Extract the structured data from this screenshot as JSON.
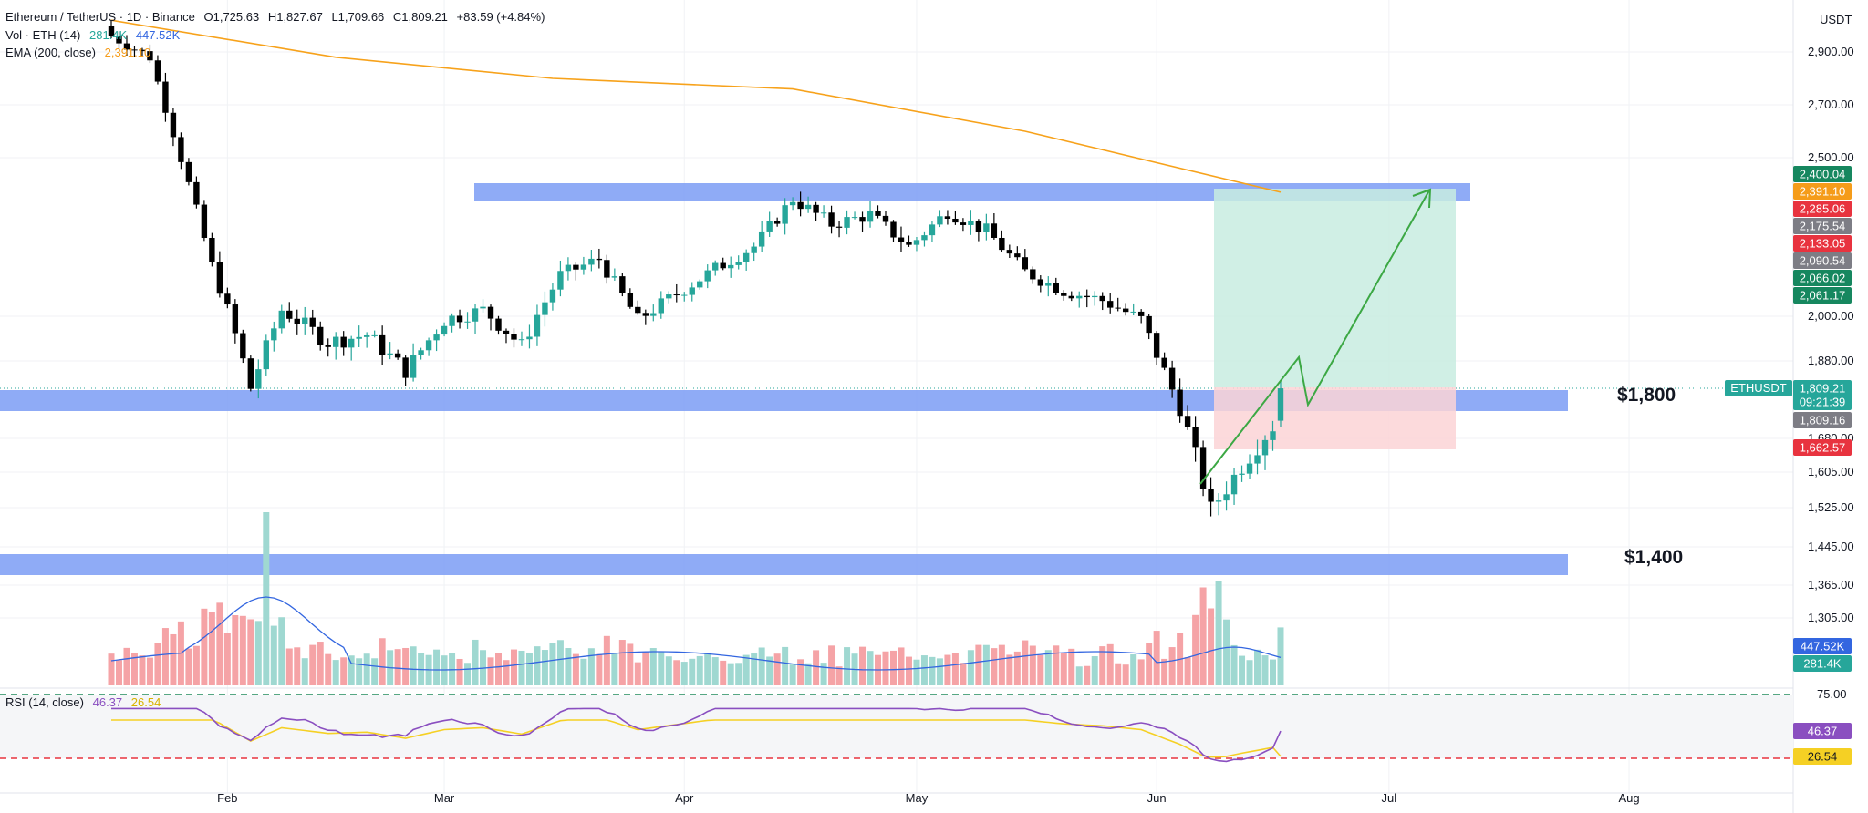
{
  "header": {
    "symbol": "Ethereum / TetherUS · 1D · Binance",
    "open": "O1,725.63",
    "high": "H1,827.67",
    "low": "L1,709.66",
    "close": "C1,809.21",
    "change": "+83.59 (+4.84%)"
  },
  "indicators": {
    "vol_label": "Vol · ETH (14)",
    "vol_value": "281.4K",
    "vol_ma_value": "447.52K",
    "ema_label": "EMA (200, close)",
    "ema_value": "2,391.10",
    "rsi_label": "RSI (14, close)",
    "rsi_value": "46.37",
    "rsi_ma_value": "26.54"
  },
  "colors": {
    "up": "#26a69a",
    "down": "#000000",
    "ema": "#f7a21b",
    "zone": "#7b9cf5",
    "profit": "#c8ece1",
    "loss": "#fbd3d6",
    "arrow": "#3ca844",
    "rsi": "#8a4fc0",
    "rsi_ma": "#f5d024",
    "vol_ma": "#3366e0"
  },
  "price_axis": {
    "unit": "USDT",
    "ticks": [
      "2,900.00",
      "2,700.00",
      "2,500.00",
      "2,000.00",
      "1,880.00",
      "1,680.00",
      "1,605.00",
      "1,525.00",
      "1,445.00",
      "1,365.00",
      "1,305.00"
    ],
    "tick_values": [
      2900,
      2700,
      2500,
      2000,
      1880,
      1680,
      1605,
      1525,
      1445,
      1365,
      1305
    ]
  },
  "rsi_axis": {
    "ticks": [
      "75.00"
    ]
  },
  "time_axis": {
    "labels": [
      "Feb",
      "Mar",
      "Apr",
      "May",
      "Jun",
      "Jul",
      "Aug"
    ]
  },
  "badges": [
    {
      "text": "2,400.04",
      "color": "#16875f"
    },
    {
      "text": "2,391.10",
      "color": "#f59c1a"
    },
    {
      "text": "2,285.06",
      "color": "#e8333f"
    },
    {
      "text": "2,175.54",
      "color": "#7d7d85"
    },
    {
      "text": "2,133.05",
      "color": "#e8333f"
    },
    {
      "text": "2,090.54",
      "color": "#7d7d85"
    },
    {
      "text": "2,066.02",
      "color": "#16875f"
    },
    {
      "text": "2,061.17",
      "color": "#16875f"
    },
    {
      "text": "1,809.21",
      "color": "#26a69a"
    },
    {
      "text": "09:21:39",
      "color": "#26a69a"
    },
    {
      "text": "1,809.16",
      "color": "#7d7d85"
    },
    {
      "text": "1,662.57",
      "color": "#e8333f"
    },
    {
      "text": "447.52K",
      "color": "#3366e0"
    },
    {
      "text": "281.4K",
      "color": "#26a69a"
    },
    {
      "text": "46.37",
      "color": "#8a4fc0"
    },
    {
      "text": "26.54",
      "color": "#f5d024"
    }
  ],
  "symbol_tag": "ETHUSDT",
  "levels": {
    "upper": "$1,800",
    "lower": "$1,400"
  },
  "chart_data": {
    "type": "candlestick",
    "title": "Ethereum / TetherUS · 1D · Binance",
    "x_range": [
      "2023-01-17",
      "2023-07-31"
    ],
    "ohlc_anchor_closes": [
      [
        "2023-01-17",
        2960
      ],
      [
        "2023-01-22",
        2880
      ],
      [
        "2023-01-26",
        2500
      ],
      [
        "2023-01-30",
        2160
      ],
      [
        "2023-02-04",
        1810
      ],
      [
        "2023-02-08",
        2020
      ],
      [
        "2023-02-14",
        1930
      ],
      [
        "2023-02-19",
        1950
      ],
      [
        "2023-02-24",
        1855
      ],
      [
        "2023-03-01",
        1990
      ],
      [
        "2023-03-06",
        2020
      ],
      [
        "2023-03-11",
        1920
      ],
      [
        "2023-03-16",
        2130
      ],
      [
        "2023-03-21",
        2180
      ],
      [
        "2023-03-26",
        1990
      ],
      [
        "2023-03-31",
        2070
      ],
      [
        "2023-04-05",
        2150
      ],
      [
        "2023-04-10",
        2220
      ],
      [
        "2023-04-15",
        2370
      ],
      [
        "2023-04-20",
        2290
      ],
      [
        "2023-04-25",
        2320
      ],
      [
        "2023-04-30",
        2220
      ],
      [
        "2023-05-05",
        2330
      ],
      [
        "2023-05-10",
        2270
      ],
      [
        "2023-05-15",
        2140
      ],
      [
        "2023-05-20",
        2080
      ],
      [
        "2023-05-25",
        2050
      ],
      [
        "2023-05-30",
        1990
      ],
      [
        "2023-06-04",
        1760
      ],
      [
        "2023-06-08",
        1520
      ],
      [
        "2023-06-12",
        1620
      ],
      [
        "2023-06-16",
        1710
      ],
      [
        "2023-06-17",
        1809.21
      ]
    ],
    "last_candle": {
      "open": 1725.63,
      "high": 1827.67,
      "low": 1709.66,
      "close": 1809.21
    },
    "ema_200": [
      [
        "2023-01-17",
        3020
      ],
      [
        "2023-02-15",
        2880
      ],
      [
        "2023-03-15",
        2800
      ],
      [
        "2023-04-15",
        2760
      ],
      [
        "2023-05-15",
        2600
      ],
      [
        "2023-06-17",
        2391.1
      ]
    ],
    "zones": [
      {
        "name": "resistance",
        "low": 2370,
        "high": 2410
      },
      {
        "name": "$1,800",
        "low": 1740,
        "high": 1790
      },
      {
        "name": "$1,400",
        "low": 1390,
        "high": 1425
      }
    ],
    "long_position": {
      "entry": 1809.16,
      "target": 2400.04,
      "stop": 1662.57
    },
    "rsi": {
      "last": 46.37,
      "ma": 26.54,
      "overbought": 75,
      "oversold": 25
    },
    "volume": {
      "last": "281.4K",
      "ma": "447.52K"
    }
  }
}
